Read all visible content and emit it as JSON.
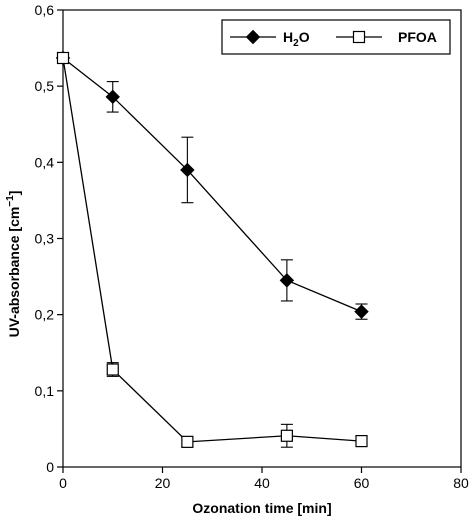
{
  "chart_data": {
    "type": "line",
    "xlabel": "Ozonation time [min]",
    "ylabel": {
      "text": "UV-absorbance [cm",
      "sup": "−1",
      "suffix": "]"
    },
    "xlim": [
      0,
      80
    ],
    "ylim": [
      0,
      0.6
    ],
    "xticks": [
      0,
      20,
      40,
      60,
      80
    ],
    "xtick_labels": [
      "0",
      "20",
      "40",
      "60",
      "80"
    ],
    "yticks": [
      0,
      0.1,
      0.2,
      0.3,
      0.4,
      0.5,
      0.6
    ],
    "ytick_labels": [
      "0",
      "0,1",
      "0,2",
      "0,3",
      "0,4",
      "0,5",
      "0,6"
    ],
    "grid": false,
    "legend_position": "top-right",
    "series": [
      {
        "name": "H2O",
        "legend_label": {
          "base": "H",
          "sub": "2",
          "rest": "O"
        },
        "marker": "filled-diamond",
        "color": "#000000",
        "x": [
          0,
          10,
          25,
          45,
          60
        ],
        "y": [
          0.537,
          0.486,
          0.39,
          0.245,
          0.204
        ],
        "err": [
          0.005,
          0.02,
          0.043,
          0.027,
          0.01
        ]
      },
      {
        "name": "PFOA",
        "legend_label": {
          "base": "PFOA",
          "sub": "",
          "rest": ""
        },
        "marker": "open-square",
        "color": "#000000",
        "x": [
          0,
          10,
          25,
          45,
          60
        ],
        "y": [
          0.537,
          0.128,
          0.033,
          0.041,
          0.034
        ],
        "err": [
          0.005,
          0.009,
          0.006,
          0.015,
          0.007
        ]
      }
    ]
  }
}
